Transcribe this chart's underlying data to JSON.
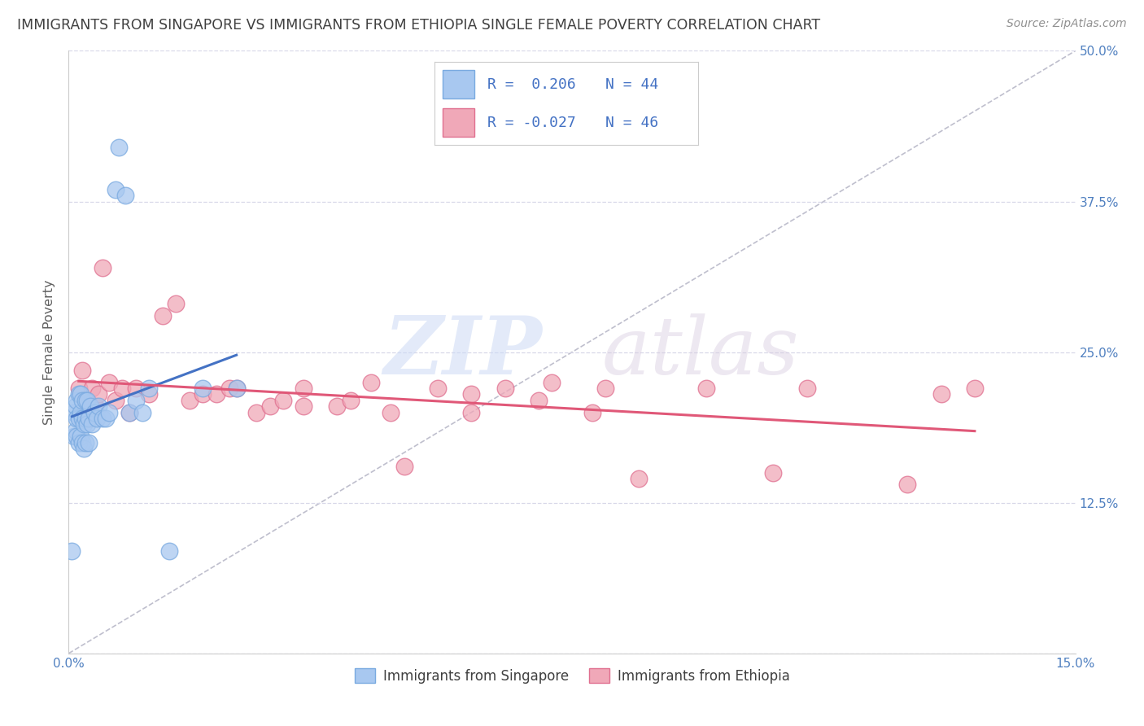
{
  "title": "IMMIGRANTS FROM SINGAPORE VS IMMIGRANTS FROM ETHIOPIA SINGLE FEMALE POVERTY CORRELATION CHART",
  "source": "Source: ZipAtlas.com",
  "ylabel": "Single Female Poverty",
  "xlim": [
    0.0,
    15.0
  ],
  "ylim": [
    0.0,
    50.0
  ],
  "r1": 0.206,
  "n1": 44,
  "r2": -0.027,
  "n2": 46,
  "color_singapore": "#a8c8f0",
  "color_ethiopia": "#f0a8b8",
  "color_edge_singapore": "#7aaae0",
  "color_edge_ethiopia": "#e07090",
  "color_line_singapore": "#4472c4",
  "color_line_ethiopia": "#e05878",
  "color_diagonal": "#b8b8c8",
  "background_color": "#ffffff",
  "grid_color": "#d8d8e8",
  "title_color": "#404040",
  "axis_label_color": "#606060",
  "tick_color": "#5080c0",
  "watermark_zip_color": "#c8d8f0",
  "watermark_atlas_color": "#d0c8d8",
  "legend_label1": "Immigrants from Singapore",
  "legend_label2": "Immigrants from Ethiopia",
  "singapore_x": [
    0.05,
    0.08,
    0.08,
    0.1,
    0.1,
    0.12,
    0.12,
    0.12,
    0.15,
    0.15,
    0.15,
    0.18,
    0.18,
    0.18,
    0.2,
    0.2,
    0.2,
    0.22,
    0.22,
    0.25,
    0.25,
    0.25,
    0.28,
    0.28,
    0.3,
    0.3,
    0.32,
    0.35,
    0.38,
    0.42,
    0.45,
    0.5,
    0.55,
    0.6,
    0.7,
    0.75,
    0.85,
    0.9,
    1.0,
    1.1,
    1.2,
    1.5,
    2.0,
    2.5
  ],
  "singapore_y": [
    8.5,
    18.0,
    20.0,
    18.5,
    20.5,
    18.0,
    19.5,
    21.0,
    17.5,
    19.5,
    21.5,
    18.0,
    20.0,
    21.5,
    17.5,
    19.5,
    21.0,
    17.0,
    19.0,
    17.5,
    19.5,
    21.0,
    19.0,
    21.0,
    17.5,
    19.5,
    20.5,
    19.0,
    20.0,
    19.5,
    20.5,
    19.5,
    19.5,
    20.0,
    38.5,
    42.0,
    38.0,
    20.0,
    21.0,
    20.0,
    22.0,
    8.5,
    22.0,
    22.0
  ],
  "ethiopia_x": [
    0.15,
    0.2,
    0.25,
    0.3,
    0.35,
    0.4,
    0.45,
    0.5,
    0.6,
    0.7,
    0.8,
    0.9,
    1.0,
    1.2,
    1.4,
    1.6,
    1.8,
    2.0,
    2.2,
    2.4,
    2.5,
    2.8,
    3.0,
    3.2,
    3.5,
    3.5,
    4.0,
    4.2,
    4.5,
    4.8,
    5.0,
    5.5,
    6.0,
    6.0,
    6.5,
    7.0,
    7.2,
    7.8,
    8.0,
    8.5,
    9.5,
    10.5,
    11.0,
    12.5,
    13.0,
    13.5
  ],
  "ethiopia_y": [
    22.0,
    23.5,
    21.0,
    19.5,
    22.0,
    20.5,
    21.5,
    32.0,
    22.5,
    21.0,
    22.0,
    20.0,
    22.0,
    21.5,
    28.0,
    29.0,
    21.0,
    21.5,
    21.5,
    22.0,
    22.0,
    20.0,
    20.5,
    21.0,
    20.5,
    22.0,
    20.5,
    21.0,
    22.5,
    20.0,
    15.5,
    22.0,
    20.0,
    21.5,
    22.0,
    21.0,
    22.5,
    20.0,
    22.0,
    14.5,
    22.0,
    15.0,
    22.0,
    14.0,
    21.5,
    22.0
  ]
}
